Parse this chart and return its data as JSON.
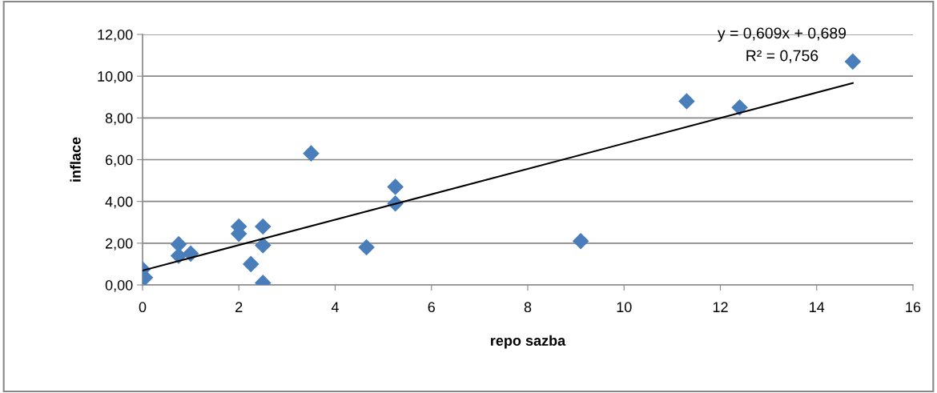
{
  "chart_data": {
    "type": "scatter",
    "xlabel": "repo sazba",
    "ylabel": "inflace",
    "annotations": [
      "y = 0,609x + 0,689",
      "R² = 0,756"
    ],
    "series": [
      {
        "color": "#4a7ebb",
        "marker": "diamond",
        "x": [
          0.0,
          0.05,
          0.75,
          0.75,
          1.0,
          2.0,
          2.0,
          2.5,
          2.5,
          2.25,
          2.5,
          3.5,
          5.25,
          5.25,
          4.65,
          9.1,
          11.3,
          12.4,
          14.75
        ],
        "values": [
          0.75,
          0.35,
          1.95,
          1.4,
          1.5,
          2.8,
          2.45,
          2.8,
          1.9,
          1.0,
          0.1,
          6.3,
          4.7,
          3.9,
          1.8,
          2.1,
          8.8,
          8.5,
          10.7
        ]
      },
      {
        "type": "line",
        "color": "#000000",
        "marker": "none",
        "x": [
          0,
          14.75
        ],
        "values": [
          0.69,
          9.67
        ]
      }
    ],
    "xlim": [
      0,
      16
    ],
    "xticks": [
      0,
      2,
      4,
      6,
      8,
      10,
      12,
      14,
      16
    ],
    "ylim": [
      0,
      12
    ],
    "yticks": [
      {
        "value": 0,
        "label": "0,00"
      },
      {
        "value": 2,
        "label": "2,00"
      },
      {
        "value": 4,
        "label": "4,00"
      },
      {
        "value": 6,
        "label": "6,00"
      },
      {
        "value": 8,
        "label": "8,00"
      },
      {
        "value": 10,
        "label": "10,00"
      },
      {
        "value": 12,
        "label": "12,00"
      }
    ],
    "grid": "y",
    "legend": false
  }
}
